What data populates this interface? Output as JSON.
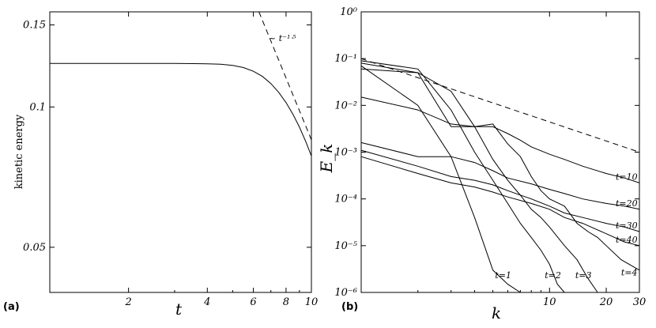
{
  "chart_data": [
    {
      "panel_label": "(a)",
      "type": "line",
      "xlabel": "t",
      "ylabel": "kinetic energy",
      "xscale": "log",
      "yscale": "log",
      "xlim": [
        1,
        10
      ],
      "ylim": [
        0.04,
        0.16
      ],
      "xticks": [
        "2",
        "4",
        "6",
        "8",
        "10"
      ],
      "xtick_values": [
        2,
        4,
        6,
        8,
        10
      ],
      "yticks": [
        "0.05",
        "0.1",
        "0.15"
      ],
      "ytick_values": [
        0.05,
        0.1,
        0.15
      ],
      "series": [
        {
          "x": [
            1,
            2,
            3,
            4,
            4.5,
            5,
            5.5,
            6,
            6.5,
            7,
            7.5,
            8,
            8.5,
            9,
            9.5,
            10
          ],
          "y": [
            0.124,
            0.124,
            0.124,
            0.1238,
            0.1235,
            0.1228,
            0.1215,
            0.1193,
            0.1163,
            0.1123,
            0.1075,
            0.1022,
            0.0965,
            0.0905,
            0.0845,
            0.0785
          ]
        },
        {
          "style": "dashed",
          "x": [
            6.3,
            10
          ],
          "y": [
            0.16,
            0.085
          ]
        }
      ],
      "annotations": [
        "~ t⁻¹ᐧ⁵"
      ]
    },
    {
      "panel_label": "(b)",
      "type": "line",
      "xlabel": "k",
      "ylabel": "E_k",
      "xscale": "log",
      "yscale": "log",
      "xlim": [
        1,
        30
      ],
      "ylim": [
        1e-06,
        1
      ],
      "xticks": [
        "10",
        "20",
        "30"
      ],
      "xtick_values": [
        10,
        20,
        30
      ],
      "yticks": [
        "10⁰",
        "10⁻¹",
        "10⁻²",
        "10⁻³",
        "10⁻⁴",
        "10⁻⁵",
        "10⁻⁶"
      ],
      "ytick_values": [
        1,
        0.1,
        0.01,
        0.001,
        0.0001,
        1e-05,
        1e-06
      ],
      "series": [
        {
          "name": "t=1",
          "x": [
            1,
            2,
            3,
            4,
            5,
            6,
            7
          ],
          "y": [
            0.07,
            0.01,
            0.0008,
            4e-05,
            3e-06,
            1.5e-06,
            8e-07
          ]
        },
        {
          "name": "t=2",
          "x": [
            1,
            2,
            3,
            4,
            5,
            6,
            7,
            8,
            9,
            10,
            11,
            12
          ],
          "y": [
            0.09,
            0.06,
            0.008,
            0.001,
            0.00025,
            8e-05,
            3e-05,
            1.5e-05,
            8e-06,
            4e-06,
            1.5e-06,
            8e-07
          ]
        },
        {
          "name": "t=3",
          "x": [
            1,
            2,
            3,
            4,
            5,
            6,
            7,
            8,
            9,
            10,
            12,
            14,
            16,
            18
          ],
          "y": [
            0.08,
            0.05,
            0.02,
            0.0035,
            0.0007,
            0.00025,
            0.00012,
            6e-05,
            4e-05,
            2.5e-05,
            1e-05,
            5e-06,
            2e-06,
            7e-07
          ]
        },
        {
          "name": "t=4",
          "x": [
            1,
            2,
            3,
            4,
            5,
            6,
            7,
            8,
            9,
            10,
            12,
            14,
            16,
            18,
            20,
            24,
            30
          ],
          "y": [
            0.06,
            0.05,
            0.0035,
            0.0035,
            0.004,
            0.0015,
            0.0008,
            0.0003,
            0.00015,
            0.0001,
            7e-05,
            3e-05,
            2e-05,
            1.5e-05,
            1e-05,
            5e-06,
            3e-06
          ]
        },
        {
          "name": "t=10",
          "x": [
            1,
            2,
            3,
            4,
            5,
            6,
            7,
            8,
            10,
            12,
            15,
            20,
            25,
            30
          ],
          "y": [
            0.015,
            0.008,
            0.004,
            0.0035,
            0.0035,
            0.0025,
            0.0018,
            0.0013,
            0.0009,
            0.0007,
            0.0005,
            0.00035,
            0.00028,
            0.00022
          ]
        },
        {
          "name": "t=20",
          "x": [
            1,
            2,
            3,
            4,
            5,
            6,
            8,
            10,
            12,
            15,
            20,
            25,
            30
          ],
          "y": [
            0.0016,
            0.0008,
            0.0008,
            0.0006,
            0.0004,
            0.00028,
            0.00021,
            0.00016,
            0.00013,
            0.0001,
            8e-05,
            7e-05,
            6e-05
          ]
        },
        {
          "name": "t=30",
          "x": [
            1,
            2,
            3,
            4,
            5,
            6,
            8,
            10,
            12,
            15,
            20,
            25,
            30
          ],
          "y": [
            0.0011,
            0.0005,
            0.0003,
            0.00025,
            0.0002,
            0.00015,
            0.0001,
            7e-05,
            5e-05,
            4e-05,
            3e-05,
            2.5e-05,
            2e-05
          ]
        },
        {
          "name": "t=40",
          "x": [
            1,
            2,
            3,
            4,
            5,
            6,
            8,
            10,
            12,
            15,
            20,
            25,
            30
          ],
          "y": [
            0.0008,
            0.00035,
            0.00022,
            0.00018,
            0.00014,
            0.00011,
            8e-05,
            6e-05,
            4e-05,
            3e-05,
            1.8e-05,
            1.2e-05,
            1e-05
          ]
        },
        {
          "style": "dashed",
          "x": [
            1,
            30
          ],
          "y": [
            0.1,
            0.001
          ]
        }
      ]
    }
  ]
}
